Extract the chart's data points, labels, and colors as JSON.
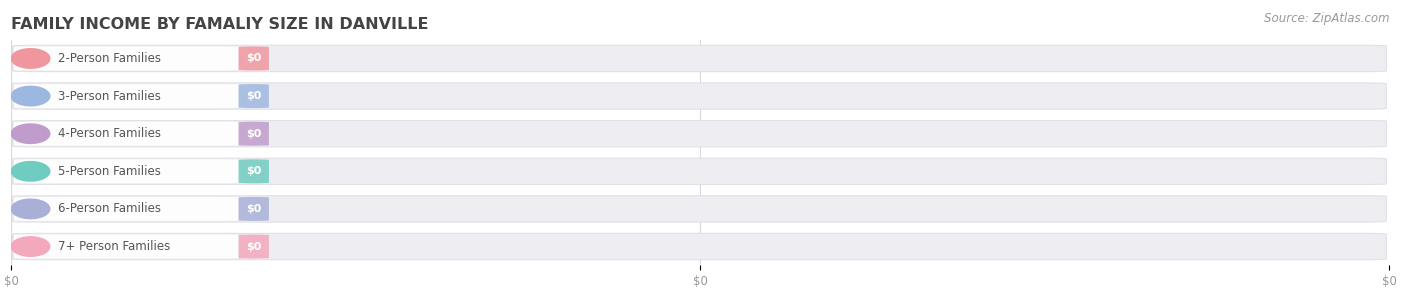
{
  "title": "FAMILY INCOME BY FAMALIY SIZE IN DANVILLE",
  "source": "Source: ZipAtlas.com",
  "categories": [
    "2-Person Families",
    "3-Person Families",
    "4-Person Families",
    "5-Person Families",
    "6-Person Families",
    "7+ Person Families"
  ],
  "values": [
    0,
    0,
    0,
    0,
    0,
    0
  ],
  "bar_colors": [
    "#f0969e",
    "#9db8e0",
    "#c09ccc",
    "#70ccc0",
    "#a8b0d8",
    "#f4a8bc"
  ],
  "bar_bg_color": "#ededf2",
  "bar_inner_color": "#f8f8fc",
  "background_color": "#ffffff",
  "title_fontsize": 11.5,
  "label_fontsize": 8.5,
  "tick_fontsize": 8.5,
  "source_fontsize": 8.5,
  "bar_height": 0.72,
  "title_color": "#444444",
  "tick_color": "#999999",
  "label_color": "#555555"
}
